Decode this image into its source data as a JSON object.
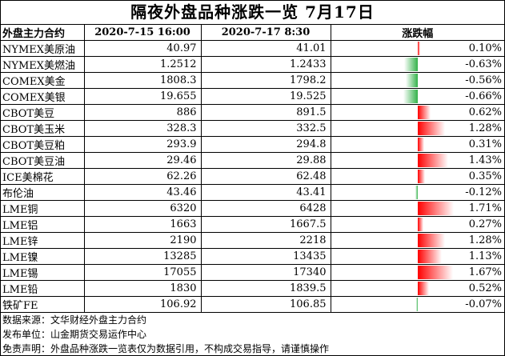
{
  "title": "隔夜外盘品种涨跌一览 7月17日",
  "headers": {
    "name": "外盘主力合约",
    "prev": "2020-7-15 16:00",
    "curr": "2020-7-17 8:30",
    "change": "涨跌幅"
  },
  "colors": {
    "up": "#ff0000",
    "down": "#33b24a"
  },
  "rows": [
    {
      "name": "NYMEX美原油",
      "prev": "40.97",
      "curr": "41.01",
      "change": "0.10%",
      "pct": 0.1
    },
    {
      "name": "NYMEX美燃油",
      "prev": "1.2512",
      "curr": "1.2433",
      "change": "-0.63%",
      "pct": -0.63
    },
    {
      "name": "COMEX美金",
      "prev": "1808.3",
      "curr": "1798.2",
      "change": "-0.56%",
      "pct": -0.56
    },
    {
      "name": "COMEX美银",
      "prev": "19.655",
      "curr": "19.525",
      "change": "-0.66%",
      "pct": -0.66
    },
    {
      "name": "CBOT美豆",
      "prev": "886",
      "curr": "891.5",
      "change": "0.62%",
      "pct": 0.62
    },
    {
      "name": "CBOT美玉米",
      "prev": "328.3",
      "curr": "332.5",
      "change": "1.28%",
      "pct": 1.28
    },
    {
      "name": "CBOT美豆粕",
      "prev": "293.9",
      "curr": "294.8",
      "change": "0.31%",
      "pct": 0.31
    },
    {
      "name": "CBOT美豆油",
      "prev": "29.46",
      "curr": "29.88",
      "change": "1.43%",
      "pct": 1.43
    },
    {
      "name": "ICE美棉花",
      "prev": "62.26",
      "curr": "62.48",
      "change": "0.35%",
      "pct": 0.35
    },
    {
      "name": "布伦油",
      "prev": "43.46",
      "curr": "43.41",
      "change": "-0.12%",
      "pct": -0.12
    },
    {
      "name": "LME铜",
      "prev": "6320",
      "curr": "6428",
      "change": "1.71%",
      "pct": 1.71
    },
    {
      "name": "LME铝",
      "prev": "1663",
      "curr": "1667.5",
      "change": "0.27%",
      "pct": 0.27
    },
    {
      "name": "LME锌",
      "prev": "2190",
      "curr": "2218",
      "change": "1.28%",
      "pct": 1.28
    },
    {
      "name": "LME镍",
      "prev": "13285",
      "curr": "13435",
      "change": "1.13%",
      "pct": 1.13
    },
    {
      "name": "LME锡",
      "prev": "17055",
      "curr": "17340",
      "change": "1.67%",
      "pct": 1.67
    },
    {
      "name": "LME铅",
      "prev": "1830",
      "curr": "1839.5",
      "change": "0.52%",
      "pct": 0.52
    },
    {
      "name": "铁矿FE",
      "prev": "106.92",
      "curr": "106.85",
      "change": "-0.07%",
      "pct": -0.07
    }
  ],
  "footer": {
    "source": "数据来源：文华财经外盘主力合约",
    "publisher": "发布单位：山金期货交易运作中心",
    "disclaimer": "免责声明：外盘品种涨跌一览表仅为数据引用，不构成交易指导，请谨慎操作"
  }
}
